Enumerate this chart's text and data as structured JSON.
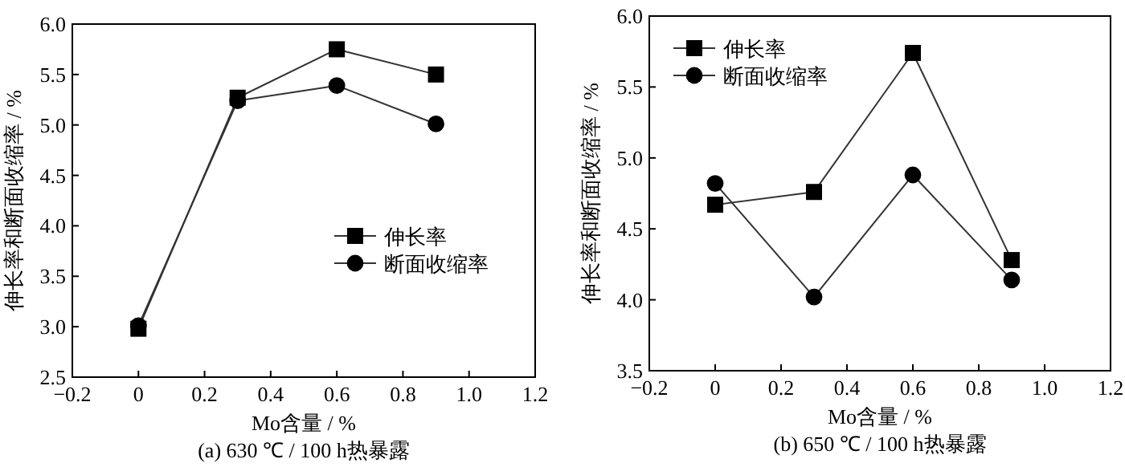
{
  "chart_data": [
    {
      "type": "line",
      "title": "(a) 630 ℃ / 100 h热暴露",
      "xlabel": "Mo含量 / %",
      "ylabel": "伸长率和断面收缩率 / %",
      "x": [
        0,
        0.3,
        0.6,
        0.9
      ],
      "series": [
        {
          "name": "伸长率",
          "color": "#000000",
          "marker": "square",
          "values": [
            2.98,
            5.27,
            5.75,
            5.5
          ]
        },
        {
          "name": "断面收缩率",
          "color": "#000000",
          "marker": "circle",
          "values": [
            3.01,
            5.24,
            5.39,
            5.01
          ]
        }
      ],
      "xlim": [
        -0.2,
        1.2
      ],
      "xticks": [
        -0.2,
        0,
        0.2,
        0.4,
        0.6,
        0.8,
        {
          "value": 1,
          "label": "1.0"
        },
        1.2
      ],
      "ylim": [
        2.5,
        6
      ],
      "yticks": [
        2.5,
        {
          "value": 3,
          "label": "3.0"
        },
        3.5,
        {
          "value": 4,
          "label": "4.0"
        },
        4.5,
        {
          "value": 5,
          "label": "5.0"
        },
        5.5,
        {
          "value": 6,
          "label": "6.0"
        }
      ],
      "legend": "right",
      "line_style": "solid"
    },
    {
      "type": "line",
      "title": "(b) 650 ℃ / 100 h热暴露",
      "xlabel": "Mo含量 / %",
      "ylabel": "伸长率和断面收缩率 / %",
      "x": [
        0,
        0.3,
        0.6,
        0.9
      ],
      "series": [
        {
          "name": "伸长率",
          "color": "#000000",
          "marker": "square",
          "values": [
            4.67,
            4.76,
            5.74,
            4.28
          ]
        },
        {
          "name": "断面收缩率",
          "color": "#000000",
          "marker": "circle",
          "values": [
            4.82,
            4.02,
            4.88,
            4.14
          ]
        }
      ],
      "xlim": [
        -0.2,
        1.2
      ],
      "xticks": [
        -0.2,
        0,
        0.2,
        0.4,
        0.6,
        0.8,
        {
          "value": 1,
          "label": "1.0"
        },
        1.2
      ],
      "ylim": [
        3.5,
        6
      ],
      "yticks": [
        3.5,
        {
          "value": 4,
          "label": "4.0"
        },
        4.5,
        {
          "value": 5,
          "label": "5.0"
        },
        5.5,
        {
          "value": 6,
          "label": "6.0"
        }
      ],
      "legend": "top left",
      "line_style": "solid"
    }
  ]
}
